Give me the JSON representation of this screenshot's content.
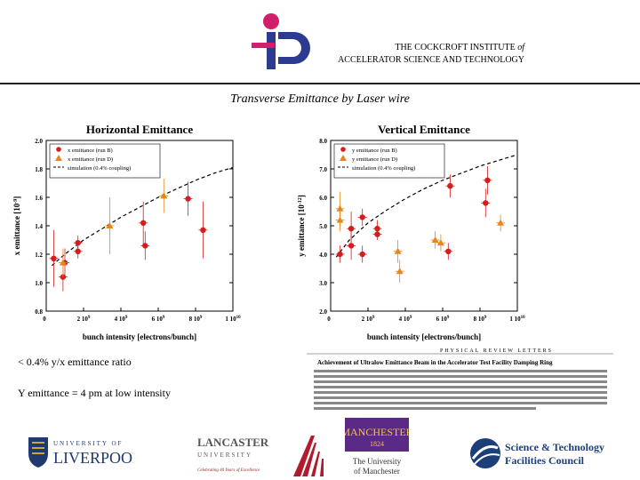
{
  "header": {
    "institute_line1_prefix": "THE COCKCROFT INSTITUTE ",
    "institute_line1_of": "of",
    "institute_line2": "ACCELERATOR SCIENCE AND TECHNOLOGY"
  },
  "slide_title": "Transverse Emittance by Laser wire",
  "chart_data": [
    {
      "type": "scatter",
      "title": "Horizontal Emittance",
      "ylabel": "x emittance [10⁻⁹]",
      "ylabel_main": "x emittance [10",
      "ylabel_exp": "-9",
      "ylabel_end": "]",
      "xlabel": "bunch intensity [electrons/bunch]",
      "xlim": [
        0,
        10000000000.0
      ],
      "ylim": [
        0.8,
        2.0
      ],
      "xtick_values": [
        2000000000.0,
        4000000000.0,
        6000000000.0,
        8000000000.0,
        10000000000.0
      ],
      "xtick_labels": [
        [
          "2",
          "10",
          "9"
        ],
        [
          "4",
          "10",
          "9"
        ],
        [
          "6",
          "10",
          "9"
        ],
        [
          "8",
          "10",
          "9"
        ],
        [
          "1",
          "10",
          "10"
        ]
      ],
      "ytick_labels": [
        "0.8",
        "1.0",
        "1.2",
        "1.4",
        "1.6",
        "1.8",
        "2.0"
      ],
      "ytick_values": [
        0.8,
        1.0,
        1.2,
        1.4,
        1.6,
        1.8,
        2.0
      ],
      "legend_position": "top-left",
      "series": [
        {
          "name": "x emittance (run B)",
          "marker": "circle",
          "color": "#d21e1e",
          "points": [
            [
              400000000.0,
              1.17,
              0.2
            ],
            [
              900000000.0,
              1.04,
              0.1
            ],
            [
              1000000000.0,
              1.14,
              0.1
            ],
            [
              1700000000.0,
              1.28,
              0.05
            ],
            [
              1700000000.0,
              1.22,
              0.05
            ],
            [
              5200000000.0,
              1.42,
              0.15
            ],
            [
              5300000000.0,
              1.26,
              0.1
            ],
            [
              7600000000.0,
              1.59,
              0.12
            ],
            [
              8400000000.0,
              1.37,
              0.2
            ]
          ]
        },
        {
          "name": "x emittance (run D)",
          "marker": "triangle",
          "color": "#e8861e",
          "points": [
            [
              900000000.0,
              1.14,
              0.1
            ],
            [
              3400000000.0,
              1.4,
              0.2
            ],
            [
              6300000000.0,
              1.61,
              0.12
            ]
          ]
        }
      ],
      "sim_name": "simulation (0.4% coupling)",
      "simulation": [
        [
          300000000.0,
          1.12
        ],
        [
          1000000000.0,
          1.2
        ],
        [
          2000000000.0,
          1.3
        ],
        [
          3000000000.0,
          1.38
        ],
        [
          4000000000.0,
          1.46
        ],
        [
          5000000000.0,
          1.53
        ],
        [
          6000000000.0,
          1.6
        ],
        [
          7000000000.0,
          1.66
        ],
        [
          8000000000.0,
          1.72
        ],
        [
          9000000000.0,
          1.77
        ],
        [
          10000000000.0,
          1.81
        ]
      ]
    },
    {
      "type": "scatter",
      "title": "Vertical Emittance",
      "ylabel": "y emittance [10⁻¹²]",
      "ylabel_main": "y emittance [10",
      "ylabel_exp": "-12",
      "ylabel_end": "]",
      "xlabel": "bunch intensity [electrons/bunch]",
      "xlim": [
        0,
        10000000000.0
      ],
      "ylim": [
        2.0,
        8.0
      ],
      "xtick_values": [
        2000000000.0,
        4000000000.0,
        6000000000.0,
        8000000000.0,
        10000000000.0
      ],
      "xtick_labels": [
        [
          "2",
          "10",
          "9"
        ],
        [
          "4",
          "10",
          "9"
        ],
        [
          "6",
          "10",
          "9"
        ],
        [
          "8",
          "10",
          "9"
        ],
        [
          "1",
          "10",
          "10"
        ]
      ],
      "ytick_labels": [
        "2.0",
        "3.0",
        "4.0",
        "5.0",
        "6.0",
        "7.0",
        "8.0"
      ],
      "ytick_values": [
        2,
        3,
        4,
        5,
        6,
        7,
        8
      ],
      "legend_position": "top-left",
      "series": [
        {
          "name": "y emittance (run B)",
          "marker": "circle",
          "color": "#d21e1e",
          "points": [
            [
              500000000.0,
              4.0,
              0.3
            ],
            [
              1100000000.0,
              4.3,
              0.5
            ],
            [
              1100000000.0,
              4.9,
              0.6
            ],
            [
              1700000000.0,
              5.3,
              0.3
            ],
            [
              1700000000.0,
              4.0,
              0.3
            ],
            [
              2500000000.0,
              4.9,
              0.3
            ],
            [
              2500000000.0,
              4.7,
              0.2
            ],
            [
              6300000000.0,
              4.1,
              0.3
            ],
            [
              6400000000.0,
              6.4,
              0.4
            ],
            [
              8400000000.0,
              6.6,
              0.5
            ],
            [
              8300000000.0,
              5.8,
              0.5
            ]
          ]
        },
        {
          "name": "y emittance (run D)",
          "marker": "triangle",
          "color": "#e8861e",
          "points": [
            [
              500000000.0,
              5.6,
              0.6
            ],
            [
              500000000.0,
              5.2,
              0.4
            ],
            [
              3600000000.0,
              4.1,
              0.4
            ],
            [
              3700000000.0,
              3.4,
              0.4
            ],
            [
              5600000000.0,
              4.5,
              0.3
            ],
            [
              5900000000.0,
              4.4,
              0.3
            ],
            [
              9100000000.0,
              5.1,
              0.3
            ]
          ]
        }
      ],
      "sim_name": "simulation (0.4% coupling)",
      "simulation": [
        [
          300000000.0,
          3.9
        ],
        [
          1000000000.0,
          4.5
        ],
        [
          2000000000.0,
          5.1
        ],
        [
          3000000000.0,
          5.55
        ],
        [
          4000000000.0,
          5.95
        ],
        [
          5000000000.0,
          6.3
        ],
        [
          6000000000.0,
          6.6
        ],
        [
          7000000000.0,
          6.85
        ],
        [
          8000000000.0,
          7.1
        ],
        [
          9000000000.0,
          7.3
        ],
        [
          10000000000.0,
          7.5
        ]
      ]
    }
  ],
  "bullets": {
    "ratio": "< 0.4% y/x emittance ratio",
    "y_emittance": "Y emittance = 4 pm at low intensity"
  },
  "paper": {
    "journal": "PHYSICAL REVIEW LETTERS",
    "title": "Achievement of Ultralow Emittance Beam in the Accelerator Test Facility Damping Ring"
  },
  "logos": {
    "liverpool_top": "UNIVERSITY OF",
    "liverpool_main": "LIVERPOOL",
    "lancaster_main": "LANCASTER",
    "lancaster_sub": "UNIVERSITY",
    "lancaster_tag": "Celebrating 40 Years of Excellence",
    "manchester_main": "MANCHESTER",
    "manchester_year": "1824",
    "manchester_sub1": "The University",
    "manchester_sub2": "of Manchester",
    "stfc_line1": "Science & Technology",
    "stfc_line2": "Facilities Council"
  },
  "colors": {
    "run_b": "#d21e1e",
    "run_d": "#e8861e",
    "manchester_purple": "#5b2a86",
    "liverpool_blue": "#1f3a6e",
    "stfc_blue": "#1c3f7a"
  }
}
